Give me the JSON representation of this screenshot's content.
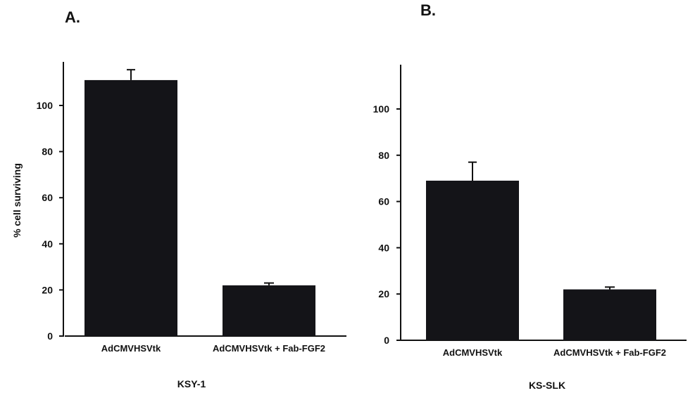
{
  "chart_data": [
    {
      "type": "bar",
      "panel_label": "A.",
      "categories": [
        "AdCMVHSVtk",
        "AdCMVHSVtk + Fab-FGF2"
      ],
      "values": [
        111,
        22
      ],
      "error": [
        4.5,
        1
      ],
      "xlabel": "KSY-1",
      "ylabel": "% cell surviving",
      "yticks": [
        0,
        20,
        40,
        60,
        80,
        100
      ],
      "ylim": [
        0,
        120
      ],
      "grid": false,
      "colors": {
        "bar": "#141418",
        "axis": "#111111"
      }
    },
    {
      "type": "bar",
      "panel_label": "B.",
      "categories": [
        "AdCMVHSVtk",
        "AdCMVHSVtk + Fab-FGF2"
      ],
      "values": [
        69,
        22
      ],
      "error": [
        8,
        1
      ],
      "xlabel": "KS-SLK",
      "ylabel": "",
      "yticks": [
        0,
        20,
        40,
        60,
        80,
        100
      ],
      "ylim": [
        0,
        120
      ],
      "grid": false,
      "colors": {
        "bar": "#141418",
        "axis": "#111111"
      }
    }
  ]
}
